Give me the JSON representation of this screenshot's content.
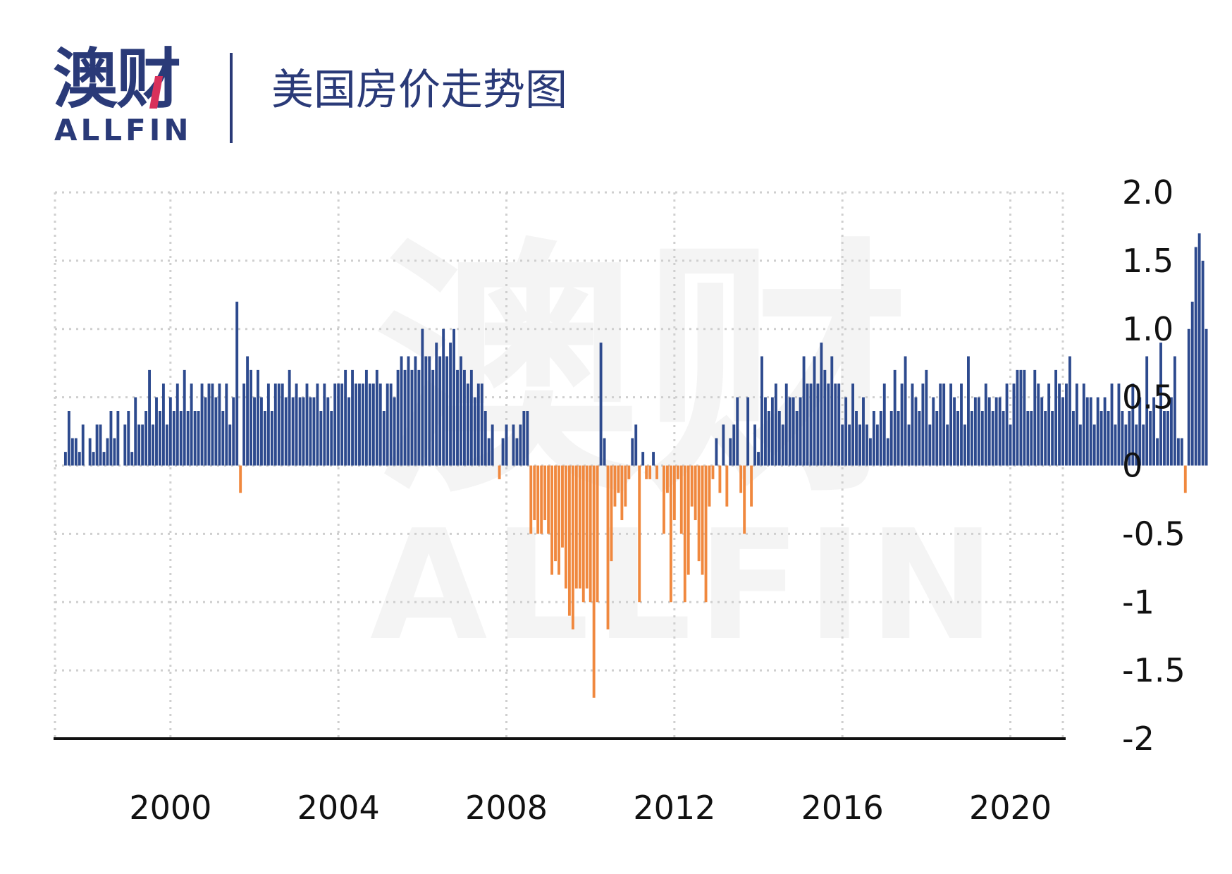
{
  "brand": {
    "logo_cn": "澳财",
    "logo_en": "ALLFIN",
    "color": "#2a3a78",
    "accent_color": "#d8315b"
  },
  "header": {
    "title": "美国房价走势图"
  },
  "colors": {
    "positive": "#2d4a8e",
    "negative": "#f0883e",
    "grid": "#cfcfcf",
    "axis": "#111111",
    "watermark": "#f4f4f4"
  },
  "chart_data": {
    "type": "bar",
    "title": "美国房价走势图",
    "xlabel": "",
    "ylabel": "",
    "x_start": "1997-07",
    "x_step": "month",
    "xlim": [
      "1997-04",
      "2021-04"
    ],
    "ylim": [
      -2,
      2
    ],
    "y_ticks": [
      2,
      1.5,
      1,
      0.5,
      0,
      -0.5,
      -1,
      -1.5,
      -2
    ],
    "y_tick_labels": [
      "2.0",
      "1.5",
      "1.0",
      "0.5",
      "0",
      "-0.5",
      "-1",
      "-1.5",
      "-2"
    ],
    "x_ticks": [
      "2000-01",
      "2004-01",
      "2008-01",
      "2012-01",
      "2016-01",
      "2020-01"
    ],
    "x_tick_labels": [
      "2000",
      "2004",
      "2008",
      "2012",
      "2016",
      "2020"
    ],
    "grid": true,
    "legend": "none",
    "values": [
      0.1,
      0.4,
      0.2,
      0.2,
      0.1,
      0.3,
      0,
      0.2,
      0.1,
      0.3,
      0.3,
      0.1,
      0.2,
      0.4,
      0.2,
      0.4,
      0,
      0.3,
      0.4,
      0.1,
      0.5,
      0.3,
      0.3,
      0.4,
      0.7,
      0.3,
      0.5,
      0.4,
      0.6,
      0.3,
      0.5,
      0.4,
      0.6,
      0.4,
      0.7,
      0.4,
      0.6,
      0.4,
      0.4,
      0.6,
      0.5,
      0.6,
      0.6,
      0.5,
      0.6,
      0.4,
      0.6,
      0.3,
      0.5,
      1.2,
      -0.2,
      0.6,
      0.8,
      0.7,
      0.5,
      0.7,
      0.5,
      0.4,
      0.6,
      0.4,
      0.6,
      0.6,
      0.6,
      0.5,
      0.7,
      0.5,
      0.6,
      0.5,
      0.5,
      0.6,
      0.5,
      0.5,
      0.6,
      0.4,
      0.6,
      0.5,
      0.4,
      0.6,
      0.6,
      0.6,
      0.7,
      0.5,
      0.7,
      0.6,
      0.6,
      0.6,
      0.7,
      0.6,
      0.6,
      0.7,
      0.6,
      0.4,
      0.6,
      0.6,
      0.5,
      0.7,
      0.8,
      0.7,
      0.8,
      0.7,
      0.8,
      0.7,
      1.0,
      0.8,
      0.8,
      0.7,
      0.9,
      0.8,
      1.0,
      0.8,
      0.9,
      1.0,
      0.7,
      0.8,
      0.7,
      0.6,
      0.7,
      0.5,
      0.6,
      0.6,
      0.4,
      0.2,
      0.3,
      0,
      -0.1,
      0.2,
      0.3,
      0,
      0.3,
      0.2,
      0.3,
      0.4,
      0.4,
      -0.5,
      -0.4,
      -0.5,
      -0.5,
      -0.4,
      -0.5,
      -0.8,
      -0.7,
      -0.8,
      -0.6,
      -0.9,
      -1.1,
      -1.2,
      -0.9,
      -0.9,
      -1.0,
      -0.9,
      -1.0,
      -1.7,
      -1.0,
      0.9,
      0.2,
      -1.2,
      -0.7,
      -0.3,
      -0.2,
      -0.4,
      -0.3,
      -0.1,
      0.2,
      0.3,
      -1.0,
      0.1,
      -0.1,
      -0.1,
      0.1,
      -0.1,
      0,
      -0.5,
      -0.2,
      -1.0,
      -0.4,
      -0.1,
      -0.5,
      -1.0,
      -0.8,
      -0.3,
      -0.4,
      -0.7,
      -0.8,
      -1.0,
      -0.3,
      -0.1,
      0.2,
      -0.2,
      0.3,
      -0.3,
      0.2,
      0.3,
      0.5,
      -0.2,
      -0.5,
      0.5,
      -0.3,
      0.3,
      0.1,
      0.8,
      0.5,
      0.4,
      0.5,
      0.6,
      0.4,
      0.3,
      0.6,
      0.5,
      0.5,
      0.4,
      0.5,
      0.8,
      0.6,
      0.6,
      0.8,
      0.6,
      0.9,
      0.7,
      0.6,
      0.8,
      0.6,
      0.6,
      0.3,
      0.5,
      0.3,
      0.6,
      0.4,
      0.3,
      0.5,
      0.3,
      0.2,
      0.4,
      0.3,
      0.4,
      0.6,
      0.2,
      0.4,
      0.7,
      0.4,
      0.6,
      0.8,
      0.3,
      0.6,
      0.5,
      0.4,
      0.6,
      0.7,
      0.3,
      0.5,
      0.4,
      0.6,
      0.6,
      0.3,
      0.6,
      0.5,
      0.4,
      0.6,
      0.3,
      0.8,
      0.4,
      0.5,
      0.5,
      0.4,
      0.6,
      0.5,
      0.4,
      0.5,
      0.5,
      0.4,
      0.6,
      0.3,
      0.6,
      0.7,
      0.7,
      0.7,
      0.4,
      0.4,
      0.7,
      0.6,
      0.5,
      0.4,
      0.6,
      0.4,
      0.7,
      0.6,
      0.5,
      0.6,
      0.8,
      0.4,
      0.6,
      0.3,
      0.6,
      0.5,
      0.5,
      0.3,
      0.5,
      0.4,
      0.5,
      0.4,
      0.6,
      0.3,
      0.6,
      0.4,
      0.3,
      0.4,
      0.6,
      0.3,
      0.5,
      0.3,
      0.8,
      0.4,
      0.5,
      0.2,
      0.9,
      0.4,
      0.4,
      0.5,
      0.8,
      0.2,
      0.2,
      -0.2,
      1.0,
      1.2,
      1.6,
      1.7,
      1.5,
      1.0
    ]
  }
}
